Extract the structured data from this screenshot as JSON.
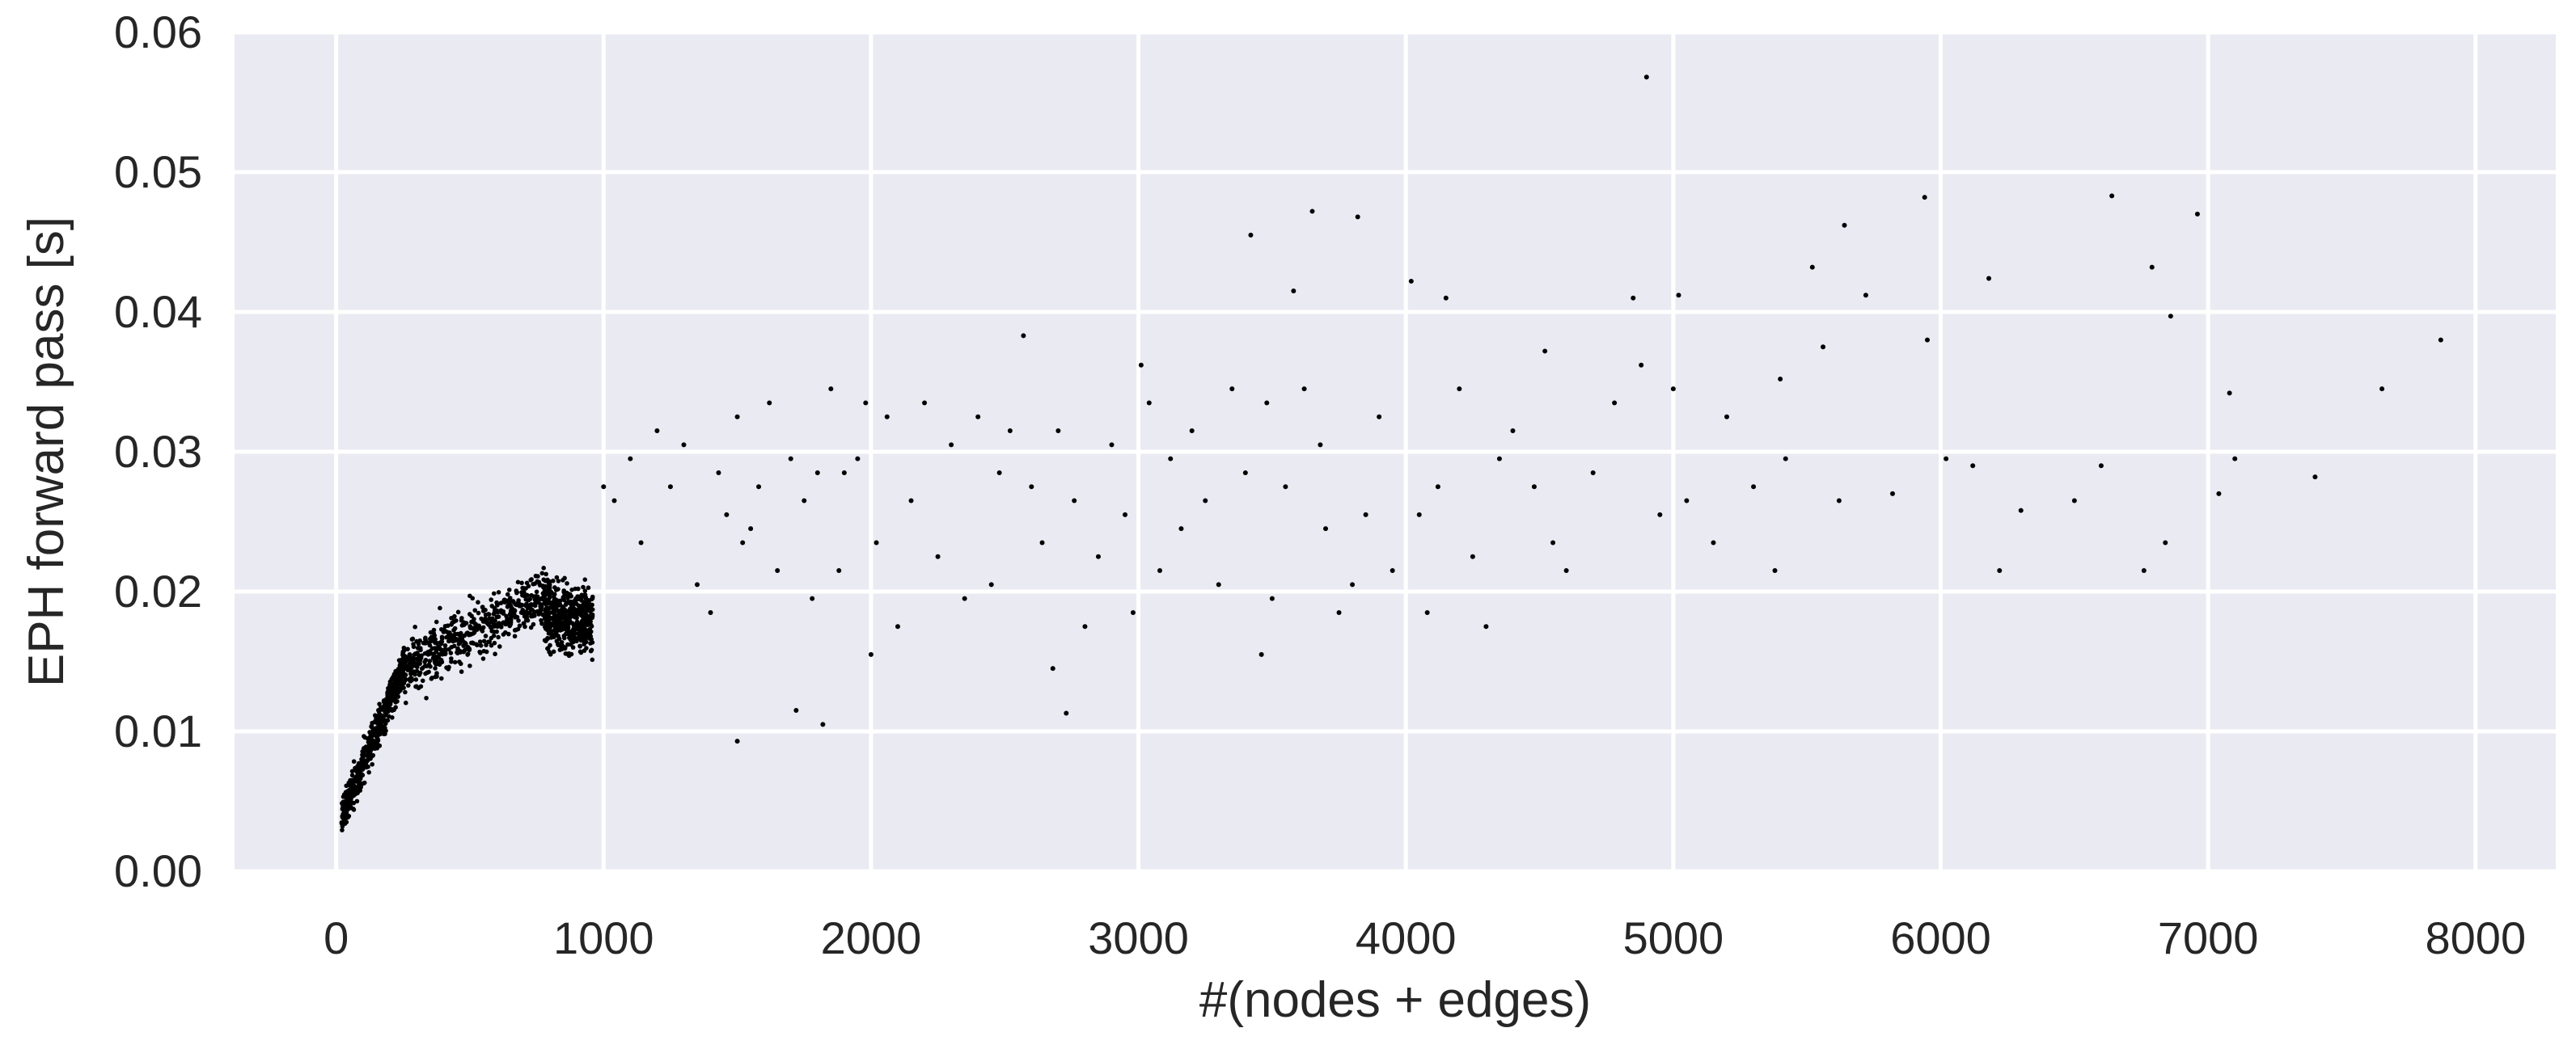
{
  "chart_data": {
    "type": "scatter",
    "xlabel": "#(nodes + edges)",
    "ylabel": "EPH forward pass [s]",
    "xlim": [
      -380,
      8300
    ],
    "ylim": [
      0,
      0.06
    ],
    "xticks": [
      0,
      1000,
      2000,
      3000,
      4000,
      5000,
      6000,
      7000,
      8000
    ],
    "yticks": [
      0.0,
      0.01,
      0.02,
      0.03,
      0.04,
      0.05,
      0.06
    ],
    "xtick_labels": [
      "0",
      "1000",
      "2000",
      "3000",
      "4000",
      "5000",
      "6000",
      "7000",
      "8000"
    ],
    "ytick_labels": [
      "0.00",
      "0.01",
      "0.02",
      "0.03",
      "0.04",
      "0.05",
      "0.06"
    ],
    "grid": true,
    "background": "#eaeaf2",
    "grid_color": "#ffffff",
    "marker_color": "#000000",
    "series": [
      {
        "points": [
          [
            1000,
            0.0275
          ],
          [
            1040,
            0.0265
          ],
          [
            1100,
            0.0295
          ],
          [
            1140,
            0.0235
          ],
          [
            1200,
            0.0315
          ],
          [
            1250,
            0.0275
          ],
          [
            1300,
            0.0305
          ],
          [
            1350,
            0.0205
          ],
          [
            1400,
            0.0185
          ],
          [
            1430,
            0.0285
          ],
          [
            1460,
            0.0255
          ],
          [
            1500,
            0.0325
          ],
          [
            1500,
            0.0093
          ],
          [
            1520,
            0.0235
          ],
          [
            1550,
            0.0245
          ],
          [
            1580,
            0.0275
          ],
          [
            1620,
            0.0335
          ],
          [
            1650,
            0.0215
          ],
          [
            1700,
            0.0295
          ],
          [
            1720,
            0.0115
          ],
          [
            1750,
            0.0265
          ],
          [
            1780,
            0.0195
          ],
          [
            1800,
            0.0285
          ],
          [
            1820,
            0.0105
          ],
          [
            1850,
            0.0345
          ],
          [
            1880,
            0.0215
          ],
          [
            1900,
            0.0285
          ],
          [
            1950,
            0.0295
          ],
          [
            1980,
            0.0335
          ],
          [
            2000,
            0.0155
          ],
          [
            2020,
            0.0235
          ],
          [
            2060,
            0.0325
          ],
          [
            2100,
            0.0175
          ],
          [
            2150,
            0.0265
          ],
          [
            2200,
            0.0335
          ],
          [
            2250,
            0.0225
          ],
          [
            2300,
            0.0305
          ],
          [
            2350,
            0.0195
          ],
          [
            2400,
            0.0325
          ],
          [
            2450,
            0.0205
          ],
          [
            2480,
            0.0285
          ],
          [
            2520,
            0.0315
          ],
          [
            2570,
            0.0383
          ],
          [
            2600,
            0.0275
          ],
          [
            2640,
            0.0235
          ],
          [
            2680,
            0.0145
          ],
          [
            2700,
            0.0315
          ],
          [
            2730,
            0.0113
          ],
          [
            2760,
            0.0265
          ],
          [
            2800,
            0.0175
          ],
          [
            2850,
            0.0225
          ],
          [
            2900,
            0.0305
          ],
          [
            2950,
            0.0255
          ],
          [
            2980,
            0.0185
          ],
          [
            3010,
            0.0362
          ],
          [
            3040,
            0.0335
          ],
          [
            3080,
            0.0215
          ],
          [
            3120,
            0.0295
          ],
          [
            3160,
            0.0245
          ],
          [
            3200,
            0.0315
          ],
          [
            3250,
            0.0265
          ],
          [
            3300,
            0.0205
          ],
          [
            3350,
            0.0345
          ],
          [
            3400,
            0.0285
          ],
          [
            3420,
            0.0455
          ],
          [
            3460,
            0.0155
          ],
          [
            3480,
            0.0335
          ],
          [
            3500,
            0.0195
          ],
          [
            3550,
            0.0275
          ],
          [
            3580,
            0.0415
          ],
          [
            3620,
            0.0345
          ],
          [
            3650,
            0.0472
          ],
          [
            3680,
            0.0305
          ],
          [
            3700,
            0.0245
          ],
          [
            3750,
            0.0185
          ],
          [
            3800,
            0.0205
          ],
          [
            3820,
            0.0468
          ],
          [
            3850,
            0.0255
          ],
          [
            3900,
            0.0325
          ],
          [
            3950,
            0.0215
          ],
          [
            4020,
            0.0422
          ],
          [
            4050,
            0.0255
          ],
          [
            4080,
            0.0185
          ],
          [
            4120,
            0.0275
          ],
          [
            4150,
            0.041
          ],
          [
            4200,
            0.0345
          ],
          [
            4250,
            0.0225
          ],
          [
            4300,
            0.0175
          ],
          [
            4350,
            0.0295
          ],
          [
            4400,
            0.0315
          ],
          [
            4480,
            0.0275
          ],
          [
            4520,
            0.0372
          ],
          [
            4550,
            0.0235
          ],
          [
            4600,
            0.0215
          ],
          [
            4700,
            0.0285
          ],
          [
            4780,
            0.0335
          ],
          [
            4850,
            0.041
          ],
          [
            4880,
            0.0362
          ],
          [
            4900,
            0.0568
          ],
          [
            4950,
            0.0255
          ],
          [
            5000,
            0.0345
          ],
          [
            5020,
            0.0412
          ],
          [
            5050,
            0.0265
          ],
          [
            5150,
            0.0235
          ],
          [
            5200,
            0.0325
          ],
          [
            5300,
            0.0275
          ],
          [
            5380,
            0.0215
          ],
          [
            5400,
            0.0352
          ],
          [
            5420,
            0.0295
          ],
          [
            5520,
            0.0432
          ],
          [
            5560,
            0.0375
          ],
          [
            5620,
            0.0265
          ],
          [
            5640,
            0.0462
          ],
          [
            5720,
            0.0412
          ],
          [
            5820,
            0.027
          ],
          [
            5940,
            0.0482
          ],
          [
            5950,
            0.038
          ],
          [
            6020,
            0.0295
          ],
          [
            6120,
            0.029
          ],
          [
            6180,
            0.0424
          ],
          [
            6220,
            0.0215
          ],
          [
            6300,
            0.0258
          ],
          [
            6500,
            0.0265
          ],
          [
            6600,
            0.029
          ],
          [
            6640,
            0.0483
          ],
          [
            6760,
            0.0215
          ],
          [
            6790,
            0.0432
          ],
          [
            6840,
            0.0235
          ],
          [
            6860,
            0.0397
          ],
          [
            6960,
            0.047
          ],
          [
            7040,
            0.027
          ],
          [
            7080,
            0.0342
          ],
          [
            7100,
            0.0295
          ],
          [
            7400,
            0.0282
          ],
          [
            7650,
            0.0345
          ],
          [
            7870,
            0.038
          ]
        ]
      }
    ]
  }
}
